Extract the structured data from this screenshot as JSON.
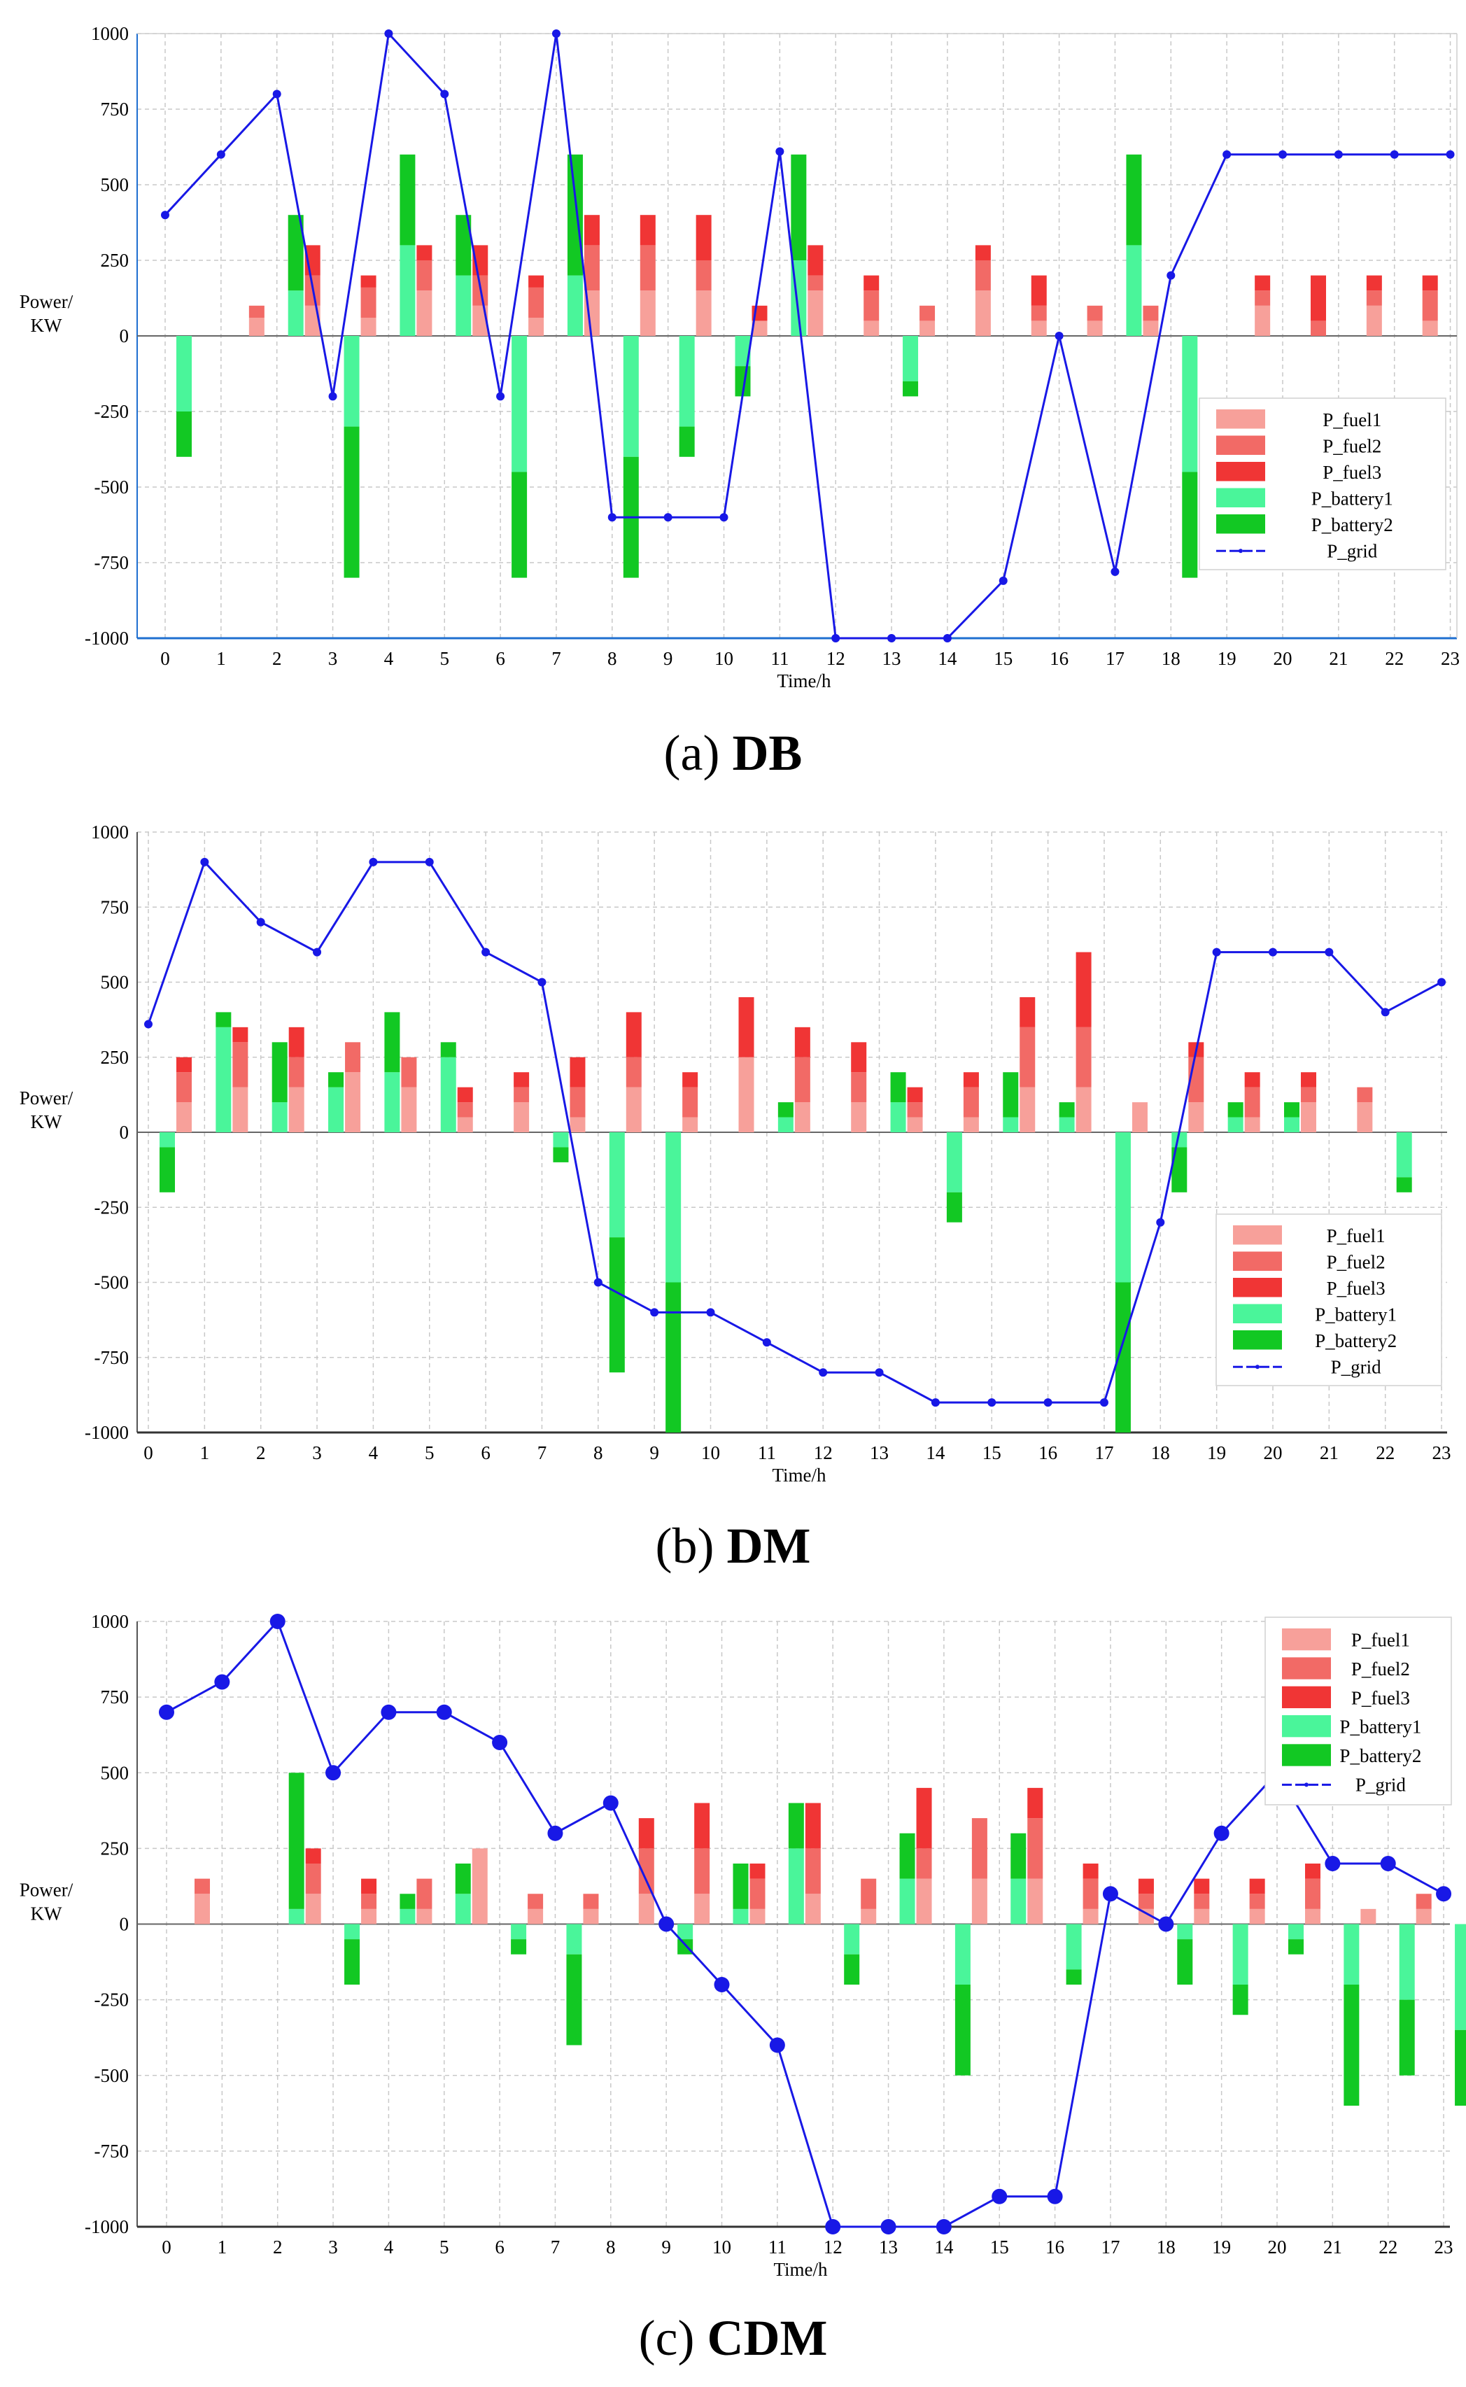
{
  "legend_labels": [
    "P_fuel1",
    "P_fuel2",
    "P_fuel3",
    "P_battery1",
    "P_battery2",
    "P_grid"
  ],
  "colors": {
    "fuel1": "#f7a09a",
    "fuel2": "#f26a66",
    "fuel3": "#f03535",
    "battery1": "#4af59a",
    "battery2": "#12c823",
    "grid": "#1818e6"
  },
  "chart_data": [
    {
      "type": "bar+line",
      "caption_letter": "(a)",
      "caption_name": "DB",
      "title": "",
      "xlabel": "Time/h",
      "ylabel": [
        "Power/",
        "KW"
      ],
      "ylim": [
        -1000,
        1000
      ],
      "yticks": [
        -1000,
        -750,
        -500,
        -250,
        0,
        250,
        500,
        750,
        1000
      ],
      "ytick_labels": [
        "-1000",
        "-750",
        "-500",
        "-250",
        "0",
        "250",
        "500",
        "750",
        "1000"
      ],
      "categories": [
        "0",
        "1",
        "2",
        "3",
        "4",
        "5",
        "6",
        "7",
        "8",
        "9",
        "10",
        "11",
        "12",
        "13",
        "14",
        "15",
        "16",
        "17",
        "18",
        "19",
        "20",
        "21",
        "22",
        "23"
      ],
      "legend_position": "right-lower",
      "marker_size": "small",
      "fuel_series": [
        {
          "name": "P_fuel1",
          "values": [
            0,
            60,
            100,
            60,
            150,
            100,
            60,
            150,
            150,
            150,
            50,
            150,
            50,
            50,
            150,
            50,
            50,
            50,
            0,
            100,
            0,
            100,
            50,
            50
          ]
        },
        {
          "name": "P_fuel2",
          "values": [
            0,
            40,
            100,
            100,
            100,
            100,
            100,
            150,
            150,
            100,
            0,
            50,
            100,
            50,
            100,
            50,
            50,
            50,
            0,
            50,
            50,
            50,
            100,
            50
          ]
        },
        {
          "name": "P_fuel3",
          "values": [
            0,
            0,
            100,
            40,
            50,
            100,
            40,
            100,
            100,
            150,
            50,
            100,
            50,
            0,
            50,
            100,
            0,
            0,
            0,
            50,
            150,
            50,
            50,
            100
          ]
        }
      ],
      "battery_series": [
        {
          "name": "P_battery1",
          "values": [
            -250,
            0,
            150,
            -300,
            300,
            200,
            -450,
            200,
            -400,
            -300,
            -100,
            250,
            0,
            -150,
            0,
            0,
            0,
            300,
            -450,
            0,
            0,
            0,
            0,
            0
          ]
        },
        {
          "name": "P_battery2",
          "values": [
            -150,
            0,
            250,
            -500,
            300,
            200,
            -350,
            400,
            -400,
            -100,
            -100,
            350,
            0,
            -50,
            0,
            0,
            0,
            300,
            -350,
            0,
            0,
            0,
            0,
            0
          ]
        }
      ],
      "grid_series": {
        "name": "P_grid",
        "values": [
          400,
          600,
          800,
          -200,
          1000,
          800,
          -200,
          1000,
          -600,
          -600,
          -600,
          610,
          -1000,
          -1000,
          -1000,
          -810,
          0,
          -780,
          200,
          600,
          600,
          600,
          600,
          600
        ]
      }
    },
    {
      "type": "bar+line",
      "caption_letter": "(b)",
      "caption_name": "DM",
      "title": "",
      "xlabel": "Time/h",
      "ylabel": [
        "Power/",
        "KW"
      ],
      "ylim": [
        -1000,
        1000
      ],
      "yticks": [
        -1000,
        -750,
        -500,
        -250,
        0,
        250,
        500,
        750,
        1000
      ],
      "ytick_labels": [
        "-1000",
        "-750",
        "-500",
        "-250",
        "0",
        "250",
        "500",
        "750",
        "1000"
      ],
      "categories": [
        "0",
        "1",
        "2",
        "3",
        "4",
        "5",
        "6",
        "7",
        "8",
        "9",
        "10",
        "11",
        "12",
        "13",
        "14",
        "15",
        "16",
        "17",
        "18",
        "19",
        "20",
        "21",
        "22",
        "23"
      ],
      "legend_position": "right-lower",
      "marker_size": "small",
      "fuel_series": [
        {
          "name": "P_fuel1",
          "values": [
            100,
            150,
            150,
            200,
            150,
            50,
            100,
            50,
            150,
            50,
            250,
            100,
            100,
            50,
            50,
            150,
            150,
            100,
            100,
            50,
            100,
            100,
            0,
            50
          ]
        },
        {
          "name": "P_fuel2",
          "values": [
            100,
            150,
            100,
            100,
            100,
            50,
            50,
            100,
            100,
            100,
            0,
            150,
            100,
            50,
            100,
            200,
            200,
            0,
            150,
            100,
            50,
            50,
            0,
            100
          ]
        },
        {
          "name": "P_fuel3",
          "values": [
            50,
            50,
            100,
            0,
            0,
            50,
            50,
            100,
            150,
            50,
            200,
            100,
            100,
            50,
            50,
            100,
            250,
            0,
            50,
            50,
            50,
            0,
            0,
            100
          ]
        }
      ],
      "battery_series": [
        {
          "name": "P_battery1",
          "values": [
            -50,
            350,
            100,
            150,
            200,
            250,
            0,
            -50,
            -350,
            -500,
            0,
            50,
            0,
            100,
            -200,
            50,
            50,
            -500,
            -50,
            50,
            50,
            0,
            -150,
            0
          ]
        },
        {
          "name": "P_battery2",
          "values": [
            -150,
            50,
            200,
            50,
            200,
            50,
            0,
            -50,
            -450,
            -500,
            0,
            50,
            0,
            100,
            -100,
            150,
            50,
            -500,
            -150,
            50,
            50,
            0,
            -50,
            0
          ]
        }
      ],
      "grid_series": {
        "name": "P_grid",
        "values": [
          360,
          900,
          700,
          600,
          900,
          900,
          600,
          500,
          -500,
          -600,
          -600,
          -700,
          -800,
          -800,
          -900,
          -900,
          -900,
          -900,
          -300,
          600,
          600,
          600,
          400,
          500
        ]
      }
    },
    {
      "type": "bar+line",
      "caption_letter": "(c)",
      "caption_name": "CDM",
      "title": "",
      "xlabel": "Time/h",
      "ylabel": [
        "Power/",
        "KW"
      ],
      "ylim": [
        -1000,
        1000
      ],
      "yticks": [
        -1000,
        -750,
        -500,
        -250,
        0,
        250,
        500,
        750,
        1000
      ],
      "ytick_labels": [
        "-1000",
        "-750",
        "-500",
        "-250",
        "0",
        "250",
        "500",
        "750",
        "1000"
      ],
      "categories": [
        "0",
        "1",
        "2",
        "3",
        "4",
        "5",
        "6",
        "7",
        "8",
        "9",
        "10",
        "11",
        "12",
        "13",
        "14",
        "15",
        "16",
        "17",
        "18",
        "19",
        "20",
        "21",
        "22",
        "23"
      ],
      "legend_position": "top-right",
      "marker_size": "large",
      "fuel_series": [
        {
          "name": "P_fuel1",
          "values": [
            100,
            0,
            100,
            50,
            50,
            250,
            50,
            50,
            100,
            100,
            50,
            100,
            50,
            150,
            150,
            150,
            50,
            50,
            50,
            50,
            50,
            50,
            50,
            0
          ]
        },
        {
          "name": "P_fuel2",
          "values": [
            50,
            0,
            100,
            50,
            100,
            0,
            50,
            50,
            150,
            150,
            100,
            150,
            100,
            100,
            200,
            200,
            100,
            50,
            50,
            50,
            100,
            0,
            50,
            0
          ]
        },
        {
          "name": "P_fuel3",
          "values": [
            0,
            0,
            50,
            50,
            0,
            0,
            0,
            0,
            100,
            150,
            50,
            150,
            0,
            200,
            0,
            100,
            50,
            50,
            50,
            50,
            50,
            0,
            0,
            0
          ]
        }
      ],
      "battery_series": [
        {
          "name": "P_battery1",
          "values": [
            0,
            0,
            50,
            -50,
            50,
            100,
            -50,
            -100,
            0,
            -50,
            50,
            250,
            -100,
            150,
            -200,
            150,
            -150,
            0,
            -50,
            -200,
            -50,
            -200,
            -250,
            -350
          ]
        },
        {
          "name": "P_battery2",
          "values": [
            0,
            0,
            450,
            -150,
            50,
            100,
            -50,
            -300,
            0,
            -50,
            150,
            150,
            -100,
            150,
            -300,
            150,
            -50,
            0,
            -150,
            -100,
            -50,
            -400,
            -250,
            -250
          ]
        }
      ],
      "grid_series": {
        "name": "P_grid",
        "values": [
          700,
          800,
          1000,
          500,
          700,
          700,
          600,
          300,
          400,
          0,
          -200,
          -400,
          -1000,
          -1000,
          -1000,
          -900,
          -900,
          100,
          0,
          300,
          500,
          200,
          200,
          100
        ]
      }
    }
  ]
}
